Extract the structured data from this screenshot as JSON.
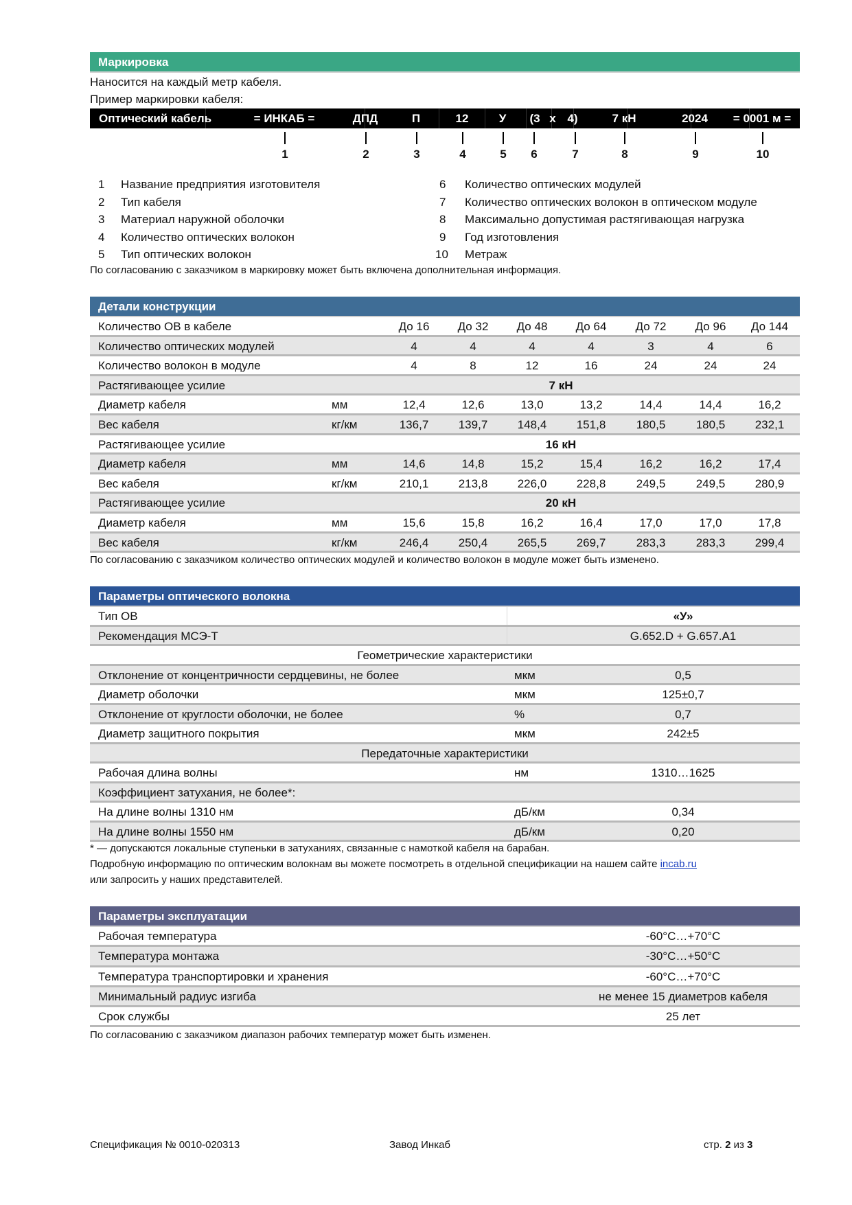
{
  "marking": {
    "title": "Маркировка",
    "line1": "Наносится на каждый метр кабеля.",
    "line2": "Пример маркировки кабеля:",
    "bar": [
      "Оптический кабель",
      "= ИНКАБ =",
      "ДПД",
      "П",
      "12",
      "У",
      "(3",
      "х",
      "4)",
      "7 кН",
      "2024",
      "= 0001 м ="
    ],
    "numbers": [
      "1",
      "2",
      "3",
      "4",
      "5",
      "6",
      "7",
      "8",
      "9",
      "10"
    ],
    "legend_left": [
      {
        "n": "1",
        "t": "Название предприятия изготовителя"
      },
      {
        "n": "2",
        "t": "Тип кабеля"
      },
      {
        "n": "3",
        "t": "Материал наружной оболочки"
      },
      {
        "n": "4",
        "t": "Количество оптических волокон"
      },
      {
        "n": "5",
        "t": "Тип оптических волокон"
      }
    ],
    "legend_right": [
      {
        "n": "6",
        "t": "Количество оптических модулей"
      },
      {
        "n": "7",
        "t": "Количество оптических волокон в оптическом модуле"
      },
      {
        "n": "8",
        "t": "Максимально допустимая растягивающая нагрузка"
      },
      {
        "n": "9",
        "t": "Год изготовления"
      },
      {
        "n": "10",
        "t": "Метраж"
      }
    ],
    "note": "По согласованию с заказчиком в маркировку может быть включена дополнительная информация."
  },
  "design": {
    "title": "Детали конструкции",
    "rows": [
      {
        "label": "Количество ОВ в кабеле",
        "unit": "",
        "values": [
          "До 16",
          "До 32",
          "До 48",
          "До 64",
          "До 72",
          "До 96",
          "До 144"
        ]
      },
      {
        "label": "Количество оптических модулей",
        "unit": "",
        "values": [
          "4",
          "4",
          "4",
          "4",
          "3",
          "4",
          "6"
        ]
      },
      {
        "label": "Количество волокон в модуле",
        "unit": "",
        "values": [
          "4",
          "8",
          "12",
          "16",
          "24",
          "24",
          "24"
        ]
      },
      {
        "label": "Растягивающее усилие",
        "unit": "",
        "span": "7 кН"
      },
      {
        "label": "Диаметр кабеля",
        "unit": "мм",
        "values": [
          "12,4",
          "12,6",
          "13,0",
          "13,2",
          "14,4",
          "14,4",
          "16,2"
        ]
      },
      {
        "label": "Вес кабеля",
        "unit": "кг/км",
        "values": [
          "136,7",
          "139,7",
          "148,4",
          "151,8",
          "180,5",
          "180,5",
          "232,1"
        ]
      },
      {
        "label": "Растягивающее усилие",
        "unit": "",
        "span": "16 кН"
      },
      {
        "label": "Диаметр кабеля",
        "unit": "мм",
        "values": [
          "14,6",
          "14,8",
          "15,2",
          "15,4",
          "16,2",
          "16,2",
          "17,4"
        ]
      },
      {
        "label": "Вес кабеля",
        "unit": "кг/км",
        "values": [
          "210,1",
          "213,8",
          "226,0",
          "228,8",
          "249,5",
          "249,5",
          "280,9"
        ]
      },
      {
        "label": "Растягивающее усилие",
        "unit": "",
        "span": "20 кН"
      },
      {
        "label": "Диаметр кабеля",
        "unit": "мм",
        "values": [
          "15,6",
          "15,8",
          "16,2",
          "16,4",
          "17,0",
          "17,0",
          "17,8"
        ]
      },
      {
        "label": "Вес кабеля",
        "unit": "кг/км",
        "values": [
          "246,4",
          "250,4",
          "265,5",
          "269,7",
          "283,3",
          "283,3",
          "299,4"
        ]
      }
    ],
    "note": "По согласованию с заказчиком количество оптических модулей и количество волокон в модуле может быть изменено."
  },
  "fiber": {
    "title": "Параметры оптического волокна",
    "rows": [
      {
        "label": "Тип ОВ",
        "unit": "",
        "value": "«У»",
        "bold": true
      },
      {
        "label": "Рекомендация МСЭ-Т",
        "unit": "",
        "value": "G.652.D + G.657.A1"
      },
      {
        "heading": "Геометрические характеристики"
      },
      {
        "label": "Отклонение от концентричности сердцевины, не более",
        "unit": "мкм",
        "value": "0,5"
      },
      {
        "label": "Диаметр оболочки",
        "unit": "мкм",
        "value": "125±0,7"
      },
      {
        "label": "Отклонение от круглости оболочки, не более",
        "unit": "%",
        "value": "0,7"
      },
      {
        "label": "Диаметр защитного покрытия",
        "unit": "мкм",
        "value": "242±5"
      },
      {
        "heading": "Передаточные характеристики"
      },
      {
        "label": "Рабочая длина волны",
        "unit": "нм",
        "value": "1310…1625"
      },
      {
        "label": "Коэффициент затухания, не более*:",
        "unit": "",
        "value": ""
      },
      {
        "label": "На длине волны 1310 нм",
        "unit": "дБ/км",
        "value": "0,34"
      },
      {
        "label": "На длине волны 1550 нм",
        "unit": "дБ/км",
        "value": "0,20"
      }
    ],
    "footnote": "* — допускаются локальные ступеньки в затуханиях, связанные с намоткой кабеля на барабан.",
    "info_prefix": "Подробную информацию по оптическим волокнам вы можете посмотреть в отдельной спецификации на нашем сайте ",
    "info_link": "incab.ru",
    "info_line2": "или запросить у наших представителей."
  },
  "operation": {
    "title": "Параметры эксплуатации",
    "rows": [
      {
        "label": "Рабочая температура",
        "value": "-60°C…+70°C"
      },
      {
        "label": "Температура монтажа",
        "value": "-30°C…+50°C"
      },
      {
        "label": "Температура транспортировки и хранения",
        "value": "-60°C…+70°C"
      },
      {
        "label": "Минимальный радиус изгиба",
        "value": "не менее 15 диаметров кабеля"
      },
      {
        "label": "Срок службы",
        "value": "25 лет"
      }
    ],
    "note": "По согласованию с заказчиком диапазон рабочих температур может быть изменен."
  },
  "footer": {
    "spec": "Спецификация № 0010-020313",
    "company": "Завод Инкаб",
    "page_prefix": "стр. ",
    "page_current": "2",
    "page_mid": " из ",
    "page_total": "3"
  },
  "colors": {
    "marking": "#3aa785",
    "design": "#3f6d96",
    "fiber": "#2b5597",
    "operation": "#5b5f85",
    "zebra": "#e6e6e6"
  }
}
